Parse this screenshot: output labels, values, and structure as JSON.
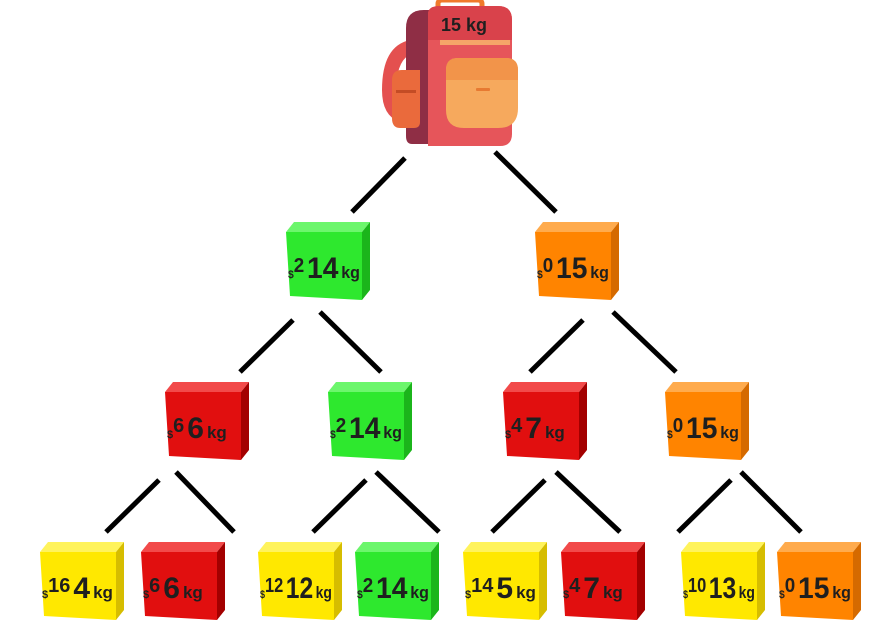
{
  "backpack": {
    "capacity_label": "15 kg"
  },
  "colors": {
    "green": {
      "front": "#2ee82e",
      "top": "#6cf66c",
      "side": "#1bb51b"
    },
    "orange": {
      "front": "#ff8400",
      "top": "#ffab4d",
      "side": "#d56a00"
    },
    "red": {
      "front": "#e10f0f",
      "top": "#f24a4a",
      "side": "#a30000"
    },
    "yellow": {
      "front": "#ffe800",
      "top": "#fff35c",
      "side": "#d6bd00"
    },
    "text": "#1f1f1f",
    "edge": "#000000"
  },
  "level1": [
    {
      "value": "2",
      "weight": "14",
      "unit": "kg",
      "color": "green"
    },
    {
      "value": "0",
      "weight": "15",
      "unit": "kg",
      "color": "orange"
    }
  ],
  "level2": [
    {
      "value": "6",
      "weight": "6",
      "unit": "kg",
      "color": "red"
    },
    {
      "value": "2",
      "weight": "14",
      "unit": "kg",
      "color": "green"
    },
    {
      "value": "4",
      "weight": "7",
      "unit": "kg",
      "color": "red"
    },
    {
      "value": "0",
      "weight": "15",
      "unit": "kg",
      "color": "orange"
    }
  ],
  "level3": [
    {
      "value": "16",
      "weight": "4",
      "unit": "kg",
      "color": "yellow"
    },
    {
      "value": "6",
      "weight": "6",
      "unit": "kg",
      "color": "red"
    },
    {
      "value": "12",
      "weight": "12",
      "unit": "kg",
      "color": "yellow"
    },
    {
      "value": "2",
      "weight": "14",
      "unit": "kg",
      "color": "green"
    },
    {
      "value": "14",
      "weight": "5",
      "unit": "kg",
      "color": "yellow"
    },
    {
      "value": "4",
      "weight": "7",
      "unit": "kg",
      "color": "red"
    },
    {
      "value": "10",
      "weight": "13",
      "unit": "kg",
      "color": "yellow"
    },
    {
      "value": "0",
      "weight": "15",
      "unit": "kg",
      "color": "orange"
    }
  ]
}
